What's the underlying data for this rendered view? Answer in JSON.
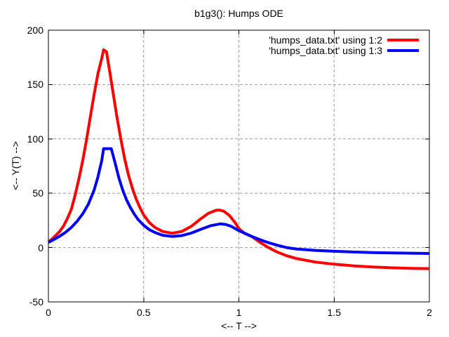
{
  "chart_data": {
    "type": "line",
    "title": "b1g3(): Humps ODE",
    "xlabel": "<-- T -->",
    "ylabel": "<-- Y(T) -->",
    "xlim": [
      0,
      2
    ],
    "ylim": [
      -50,
      200
    ],
    "xticks": [
      {
        "value": 0,
        "label": "0"
      },
      {
        "value": 0.5,
        "label": "0.5"
      },
      {
        "value": 1,
        "label": "1"
      },
      {
        "value": 1.5,
        "label": "1.5"
      },
      {
        "value": 2,
        "label": "2"
      }
    ],
    "yticks": [
      {
        "value": -50,
        "label": "-50"
      },
      {
        "value": 0,
        "label": "0"
      },
      {
        "value": 50,
        "label": "50"
      },
      {
        "value": 100,
        "label": "100"
      },
      {
        "value": 150,
        "label": "150"
      },
      {
        "value": 200,
        "label": "200"
      }
    ],
    "grid": true,
    "grid_color": "#9b9b9b",
    "frame_color": "#000000",
    "legend_position": "top-right-inside",
    "series": [
      {
        "name": "'humps_data.txt' using 1:2",
        "color": "#ff0000",
        "points": [
          [
            0.0,
            5
          ],
          [
            0.02,
            8
          ],
          [
            0.04,
            11.5
          ],
          [
            0.06,
            15
          ],
          [
            0.08,
            20
          ],
          [
            0.1,
            27
          ],
          [
            0.12,
            35
          ],
          [
            0.14,
            48
          ],
          [
            0.16,
            63
          ],
          [
            0.18,
            80
          ],
          [
            0.2,
            99
          ],
          [
            0.22,
            120
          ],
          [
            0.24,
            141
          ],
          [
            0.26,
            160
          ],
          [
            0.28,
            174
          ],
          [
            0.29,
            182
          ],
          [
            0.305,
            180
          ],
          [
            0.32,
            164
          ],
          [
            0.34,
            142
          ],
          [
            0.36,
            120
          ],
          [
            0.38,
            100
          ],
          [
            0.4,
            82
          ],
          [
            0.42,
            67
          ],
          [
            0.44,
            55
          ],
          [
            0.46,
            45
          ],
          [
            0.48,
            37
          ],
          [
            0.5,
            30
          ],
          [
            0.53,
            23
          ],
          [
            0.56,
            18.5
          ],
          [
            0.6,
            14.8
          ],
          [
            0.65,
            13.2
          ],
          [
            0.7,
            14.8
          ],
          [
            0.75,
            19.5
          ],
          [
            0.8,
            26.5
          ],
          [
            0.84,
            31.5
          ],
          [
            0.88,
            34.3
          ],
          [
            0.9,
            34.4
          ],
          [
            0.92,
            33.5
          ],
          [
            0.95,
            29.5
          ],
          [
            0.98,
            23
          ],
          [
            1.0,
            17.5
          ],
          [
            1.03,
            13
          ],
          [
            1.07,
            10
          ],
          [
            1.1,
            6
          ],
          [
            1.15,
            0.5
          ],
          [
            1.2,
            -4
          ],
          [
            1.25,
            -7.5
          ],
          [
            1.3,
            -10
          ],
          [
            1.4,
            -13.3
          ],
          [
            1.5,
            -15.3
          ],
          [
            1.6,
            -16.8
          ],
          [
            1.7,
            -17.9
          ],
          [
            1.8,
            -18.6
          ],
          [
            1.9,
            -19.1
          ],
          [
            2.0,
            -19.4
          ]
        ]
      },
      {
        "name": "'humps_data.txt' using 1:3",
        "color": "#0000ff",
        "points": [
          [
            0.0,
            4.8
          ],
          [
            0.03,
            7.5
          ],
          [
            0.06,
            10.5
          ],
          [
            0.09,
            14
          ],
          [
            0.12,
            18.5
          ],
          [
            0.15,
            24
          ],
          [
            0.18,
            31
          ],
          [
            0.21,
            40
          ],
          [
            0.24,
            53
          ],
          [
            0.26,
            65
          ],
          [
            0.28,
            80
          ],
          [
            0.29,
            91
          ],
          [
            0.33,
            91
          ],
          [
            0.35,
            78
          ],
          [
            0.37,
            64
          ],
          [
            0.39,
            53
          ],
          [
            0.41,
            44
          ],
          [
            0.43,
            37
          ],
          [
            0.45,
            31
          ],
          [
            0.47,
            26
          ],
          [
            0.5,
            20.5
          ],
          [
            0.53,
            16.5
          ],
          [
            0.56,
            13.8
          ],
          [
            0.6,
            11.3
          ],
          [
            0.65,
            10.2
          ],
          [
            0.7,
            11
          ],
          [
            0.75,
            13.3
          ],
          [
            0.8,
            16.8
          ],
          [
            0.85,
            20
          ],
          [
            0.9,
            21.8
          ],
          [
            0.93,
            21.3
          ],
          [
            0.96,
            19.5
          ],
          [
            1.0,
            15.5
          ],
          [
            1.04,
            12.5
          ],
          [
            1.07,
            10
          ],
          [
            1.1,
            8
          ],
          [
            1.15,
            4.8
          ],
          [
            1.2,
            2.2
          ],
          [
            1.25,
            0
          ],
          [
            1.3,
            -1.3
          ],
          [
            1.4,
            -2.6
          ],
          [
            1.5,
            -3.4
          ],
          [
            1.6,
            -4.1
          ],
          [
            1.7,
            -4.6
          ],
          [
            1.8,
            -5.0
          ],
          [
            1.9,
            -5.2
          ],
          [
            2.0,
            -5.4
          ]
        ]
      }
    ]
  }
}
